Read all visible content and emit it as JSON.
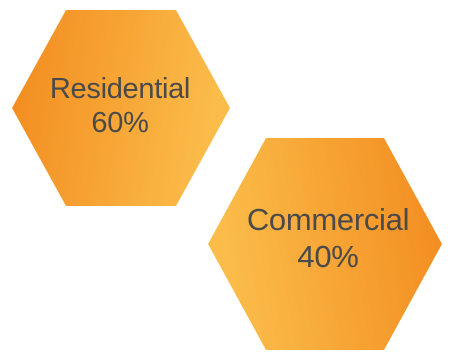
{
  "segments": [
    {
      "label": "Residential",
      "percent": "60%",
      "value": 60
    },
    {
      "label": "Commercial",
      "percent": "40%",
      "value": 40
    }
  ],
  "colors": {
    "hex_start": "#f28a1e",
    "hex_end": "#fbbd4a",
    "text": "#4a4a4a",
    "background": "#ffffff"
  }
}
